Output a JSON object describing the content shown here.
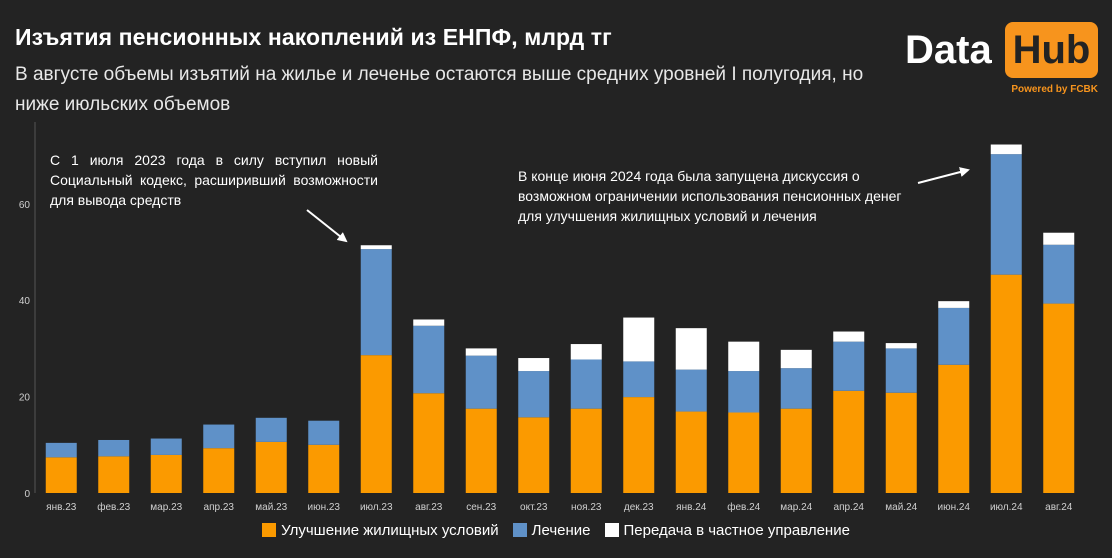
{
  "header": {
    "title": "Изъятия пенсионных накоплений из ЕНПФ, млрд тг",
    "subtitle": "В августе объемы изъятий на жилье и леченье остаются выше средних уровней I полугодия, но ниже июльских объемов"
  },
  "logo": {
    "data": "Data",
    "hub": "Hub",
    "powered": "Powered by FCBK"
  },
  "annotations": {
    "note1": "С 1 июля 2023 года в силу вступил новый Социальный кодекс, расширивший возможности для вывода средств",
    "note2": "В конце июня 2024 года была запущена дискуссия о возможном ограничении использования пенсионных денег для улучшения жилищных условий и лечения"
  },
  "colors": {
    "housing": "#fb9a00",
    "treatment": "#5f91c8",
    "private": "#ffffff",
    "background": "#232323",
    "axis_text": "#d0d0d0"
  },
  "chart_data": {
    "type": "bar",
    "stacked": true,
    "categories": [
      "янв.23",
      "фев.23",
      "мар.23",
      "апр.23",
      "май.23",
      "июн.23",
      "июл.23",
      "авг.23",
      "сен.23",
      "окт.23",
      "ноя.23",
      "дек.23",
      "янв.24",
      "фев.24",
      "мар.24",
      "апр.24",
      "май.24",
      "июн.24",
      "июл.24",
      "авг.24"
    ],
    "series": [
      {
        "name": "Улучшение жилищных условий",
        "values": [
          7.4,
          7.6,
          7.9,
          9.3,
          10.6,
          10.0,
          28.6,
          20.7,
          17.5,
          15.7,
          17.5,
          19.9,
          16.9,
          16.7,
          17.5,
          21.2,
          20.8,
          26.6,
          45.3,
          39.3
        ]
      },
      {
        "name": "Лечение",
        "values": [
          3.0,
          3.4,
          3.4,
          4.9,
          5.0,
          5.0,
          22.0,
          14.0,
          11.0,
          9.6,
          10.2,
          7.4,
          8.7,
          8.6,
          8.4,
          10.2,
          9.2,
          11.8,
          25.0,
          12.2
        ]
      },
      {
        "name": "Передача в частное управление",
        "values": [
          0,
          0,
          0,
          0,
          0,
          0,
          0.8,
          1.3,
          1.5,
          2.7,
          3.2,
          9.1,
          8.6,
          6.1,
          3.8,
          2.1,
          1.1,
          1.4,
          2.0,
          2.5
        ]
      }
    ],
    "yticks": [
      0,
      20,
      40,
      60
    ],
    "ylim": [
      0,
      75
    ],
    "grid": false,
    "legend_position": "bottom"
  }
}
